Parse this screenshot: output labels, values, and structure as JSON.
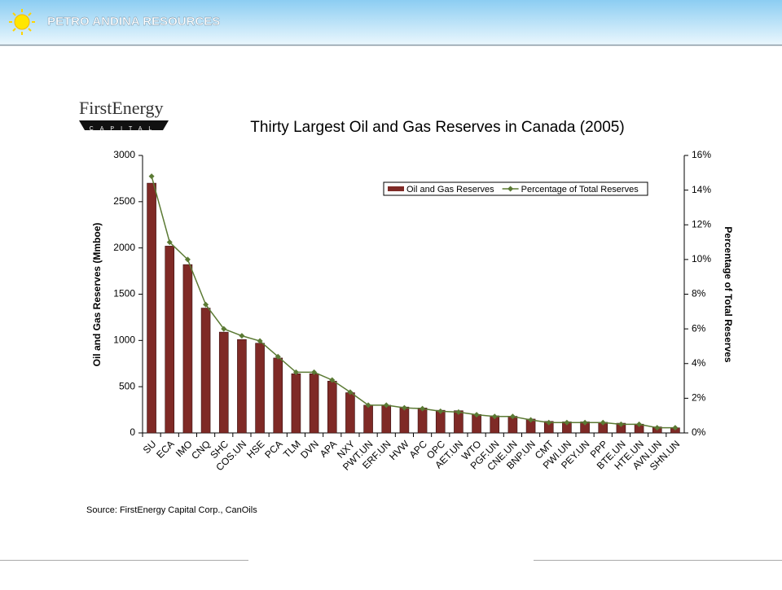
{
  "header": {
    "title": "PETRO ANDINA RESOURCES"
  },
  "logo": {
    "name": "FirstEnergy",
    "sub": "CAPITAL"
  },
  "source": "Source: FirstEnergy Capital Corp., CanOils",
  "chart_data": {
    "type": "bar",
    "title": "Thirty Largest Oil and Gas Reserves in Canada (2005)",
    "y_label": "Oil and Gas Reserves (Mmboe)",
    "y2_label": "Percentage of Total Reserves",
    "categories": [
      "SU",
      "ECA",
      "IMO",
      "CNQ",
      "SHC",
      "COS.UN",
      "HSE",
      "PCA",
      "TLM",
      "DVN",
      "APA",
      "NXY",
      "PWT.UN",
      "ERF.UN",
      "HVW",
      "APC",
      "OPC",
      "AET.UN",
      "WTO",
      "PGF.UN",
      "CNE.UN",
      "BNP.UN",
      "CMT",
      "PWI.UN",
      "PEY.UN",
      "PPP",
      "BTE.UN",
      "HTE.UN",
      "AVN.UN",
      "SHN.UN"
    ],
    "series": [
      {
        "name": "Oil and Gas Reserves",
        "type": "bar",
        "color": "#7f2a26",
        "values": [
          2700,
          2020,
          1820,
          1350,
          1090,
          1010,
          970,
          810,
          640,
          640,
          560,
          435,
          300,
          300,
          280,
          270,
          245,
          240,
          200,
          185,
          180,
          150,
          125,
          120,
          120,
          115,
          105,
          95,
          65,
          55
        ]
      },
      {
        "name": "Percentage of Total Reserves",
        "type": "line",
        "axis": "y2",
        "color": "#5b7a34",
        "values": [
          14.8,
          11.0,
          10.0,
          7.4,
          6.0,
          5.6,
          5.3,
          4.4,
          3.5,
          3.5,
          3.05,
          2.35,
          1.6,
          1.6,
          1.45,
          1.4,
          1.25,
          1.2,
          1.05,
          0.95,
          0.95,
          0.75,
          0.6,
          0.6,
          0.6,
          0.6,
          0.5,
          0.5,
          0.3,
          0.3
        ]
      }
    ],
    "ylim": [
      0,
      3000
    ],
    "yticks": [
      0,
      500,
      1000,
      1500,
      2000,
      2500,
      3000
    ],
    "y2lim": [
      0,
      16
    ],
    "y2ticks": [
      {
        "value": 0,
        "label": "0%"
      },
      {
        "value": 2,
        "label": "2%"
      },
      {
        "value": 4,
        "label": "4%"
      },
      {
        "value": 6,
        "label": "6%"
      },
      {
        "value": 8,
        "label": "8%"
      },
      {
        "value": 10,
        "label": "10%"
      },
      {
        "value": 12,
        "label": "12%"
      },
      {
        "value": 14,
        "label": "14%"
      },
      {
        "value": 16,
        "label": "16%"
      }
    ],
    "legend": "top-right",
    "grid": false
  }
}
